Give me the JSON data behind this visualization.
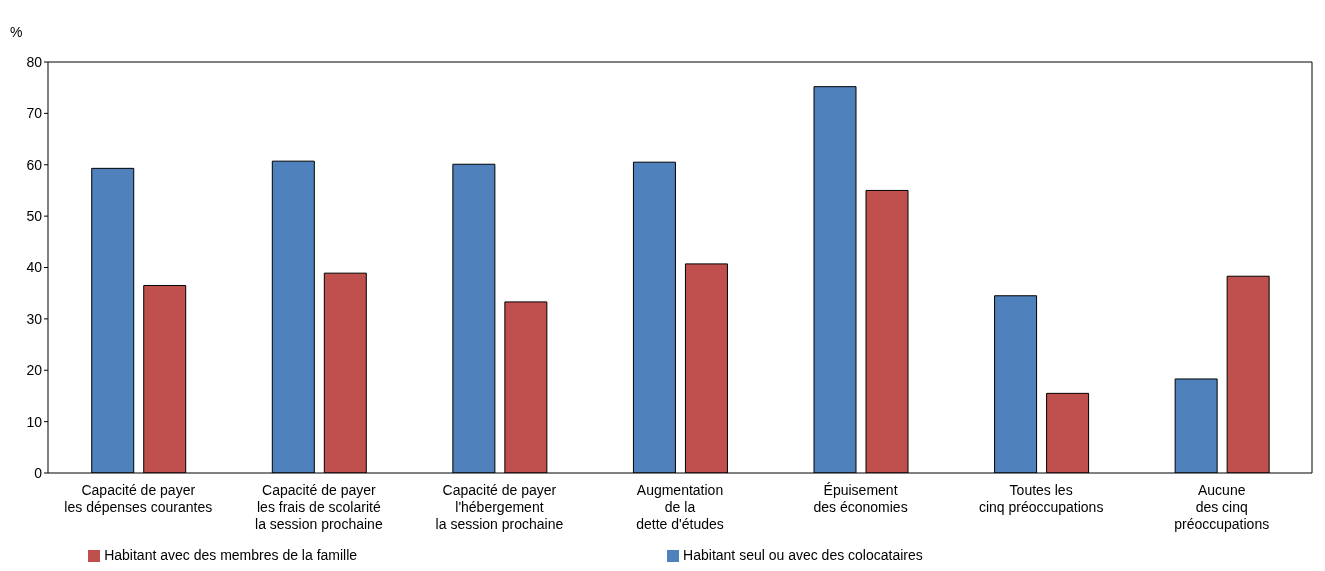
{
  "chart_data": {
    "type": "bar",
    "ylabel": "%",
    "categories": [
      "Capacité de payer\nles dépenses courantes",
      "Capacité de payer\nles frais de scolarité\nla session prochaine",
      "Capacité de payer\nl'hébergement\nla session prochaine",
      "Augmentation\nde la\ndette d'études",
      "Épuisement\ndes économies",
      "Toutes les\ncinq préoccupations",
      "Aucune\ndes cinq\npréoccupations"
    ],
    "series": [
      {
        "name": "Habitant seul ou avec des colocataires",
        "color": "#4f81bd",
        "values": [
          59.3,
          60.7,
          60.1,
          60.5,
          75.2,
          34.5,
          18.3
        ]
      },
      {
        "name": "Habitant avec des membres de la famille",
        "color": "#c0504d",
        "values": [
          36.5,
          38.9,
          33.3,
          40.7,
          55.0,
          15.5,
          38.3
        ]
      }
    ],
    "ylim": [
      0,
      80
    ],
    "yticks": [
      0,
      10,
      20,
      30,
      40,
      50,
      60,
      70,
      80
    ],
    "grid": false,
    "legend": "bottom"
  }
}
